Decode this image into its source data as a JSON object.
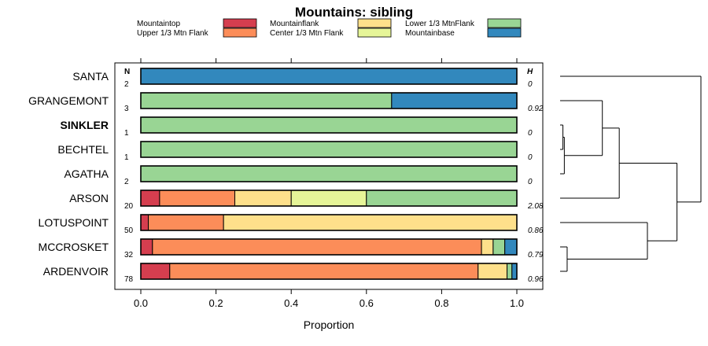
{
  "chart_data": {
    "type": "bar",
    "orientation": "horizontal-stacked",
    "title": "Mountains: sibling",
    "xlabel": "Proportion",
    "ylabel": "",
    "xlim": [
      0,
      1
    ],
    "x_ticks": [
      "0.0",
      "0.2",
      "0.4",
      "0.6",
      "0.8",
      "1.0"
    ],
    "n_header": "N",
    "h_header": "H",
    "legend": [
      {
        "name": "Mountaintop",
        "color": "#d53e4f"
      },
      {
        "name": "Upper 1/3 Mtn Flank",
        "color": "#fc8d59"
      },
      {
        "name": "Mountainflank",
        "color": "#fee08b"
      },
      {
        "name": "Center 1/3 Mtn Flank",
        "color": "#e6f598"
      },
      {
        "name": "Lower 1/3 MtnFlank",
        "color": "#99d594"
      },
      {
        "name": "Mountainbase",
        "color": "#3288bd"
      }
    ],
    "categories": [
      "SANTA",
      "GRANGEMONT",
      "SINKLER",
      "BECHTEL",
      "AGATHA",
      "ARSON",
      "LOTUSPOINT",
      "MCCROSKET",
      "ARDENVOIR"
    ],
    "highlighted": [
      "SINKLER"
    ],
    "n": [
      "2",
      "3",
      "1",
      "1",
      "2",
      "20",
      "50",
      "32",
      "78"
    ],
    "h": [
      "0",
      "0.92",
      "0",
      "0",
      "0",
      "2.08",
      "0.86",
      "0.79",
      "0.96"
    ],
    "series": [
      {
        "name": "Mountaintop",
        "values": [
          0,
          0,
          0,
          0,
          0,
          0.05,
          0.02,
          0.031,
          0.077
        ]
      },
      {
        "name": "Upper 1/3 Mtn Flank",
        "values": [
          0,
          0,
          0,
          0,
          0,
          0.2,
          0.2,
          0.875,
          0.82
        ]
      },
      {
        "name": "Mountainflank",
        "values": [
          0,
          0,
          0,
          0,
          0,
          0.15,
          0.78,
          0.031,
          0.077
        ]
      },
      {
        "name": "Center 1/3 Mtn Flank",
        "values": [
          0,
          0,
          0,
          0,
          0,
          0.2,
          0,
          0,
          0
        ]
      },
      {
        "name": "Lower 1/3 MtnFlank",
        "values": [
          0,
          0.667,
          1,
          1,
          1,
          0.4,
          0,
          0.031,
          0.013
        ]
      },
      {
        "name": "Mountainbase",
        "values": [
          1,
          0.333,
          0,
          0,
          0,
          0,
          0,
          0.032,
          0.013
        ]
      }
    ],
    "dendrogram": {
      "description": "Hierarchical clustering of rows (order top to bottom)",
      "merges": [
        {
          "a": "SINKLER",
          "b": "BECHTEL",
          "height": 0.02
        },
        {
          "a": "SINKLER+BECHTEL",
          "b": "AGATHA",
          "height": 0.03
        },
        {
          "a": "MCCROSKET",
          "b": "ARDENVOIR",
          "height": 0.05
        },
        {
          "a": "GRANGEMONT",
          "b": "SINKLER+BECHTEL+AGATHA",
          "height": 0.3
        },
        {
          "a": "GRANGEMONT+SINKLER+BECHTEL+AGATHA",
          "b": "ARSON",
          "height": 0.42
        },
        {
          "a": "LOTUSPOINT",
          "b": "MCCROSKET+ARDENVOIR",
          "height": 0.62
        },
        {
          "a": "GRANGEMONT..ARSON",
          "b": "LOTUSPOINT+MCCROSKET+ARDENVOIR",
          "height": 0.83
        },
        {
          "a": "SANTA",
          "b": "REST",
          "height": 1.0
        }
      ]
    }
  }
}
